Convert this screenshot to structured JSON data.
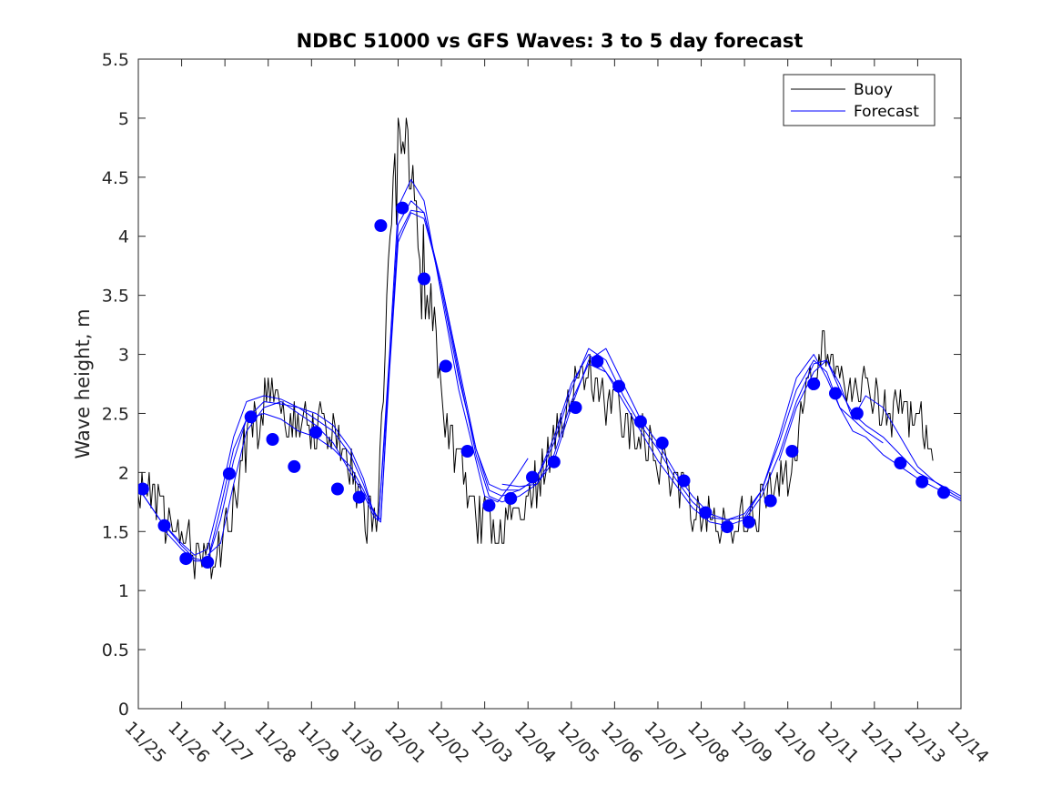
{
  "chart_data": {
    "type": "line",
    "title": "NDBC 51000 vs GFS Waves: 3 to 5 day forecast",
    "xlabel": "",
    "ylabel": "Wave height, m",
    "ylim": [
      0,
      5.5
    ],
    "xlim": [
      0,
      19
    ],
    "x_units": "days since 11/25",
    "yticks": [
      0,
      0.5,
      1,
      1.5,
      2,
      2.5,
      3,
      3.5,
      4,
      4.5,
      5,
      5.5
    ],
    "ytick_labels": [
      "0",
      "0.5",
      "1",
      "1.5",
      "2",
      "2.5",
      "3",
      "3.5",
      "4",
      "4.5",
      "5",
      "5.5"
    ],
    "xtick_labels": [
      "11/25",
      "11/26",
      "11/27",
      "11/28",
      "11/29",
      "11/30",
      "12/01",
      "12/02",
      "12/03",
      "12/04",
      "12/05",
      "12/06",
      "12/07",
      "12/08",
      "12/09",
      "12/10",
      "12/11",
      "12/12",
      "12/13",
      "12/14"
    ],
    "grid": false,
    "legend": {
      "position": "top-right",
      "entries": [
        {
          "label": "Buoy",
          "color": "#000000"
        },
        {
          "label": "Forecast",
          "color": "#0000ff"
        }
      ]
    },
    "series": [
      {
        "name": "Buoy",
        "color": "#000000",
        "x": [
          0,
          0.5,
          1,
          1.3,
          1.6,
          1.9,
          2.2,
          2.4,
          2.6,
          2.8,
          3.0,
          3.3,
          3.6,
          3.9,
          4.2,
          4.5,
          4.8,
          5.0,
          5.2,
          5.4,
          5.5,
          5.7,
          5.85,
          6.0,
          6.15,
          6.3,
          6.5,
          6.8,
          7.0,
          7.3,
          7.6,
          7.8,
          8.0,
          8.2,
          8.4,
          8.7,
          9.0,
          9.2,
          9.5,
          9.8,
          10.0,
          10.3,
          10.6,
          10.8,
          11.0,
          11.3,
          11.6,
          11.9,
          12.2,
          12.5,
          12.8,
          13.0,
          13.3,
          13.6,
          13.9,
          14.2,
          14.5,
          14.8,
          15.0,
          15.3,
          15.6,
          15.8,
          16.0,
          16.2,
          16.4,
          16.6,
          16.8,
          17.0,
          17.2,
          17.4,
          17.6,
          17.8,
          18.0,
          18.2,
          18.35
        ],
        "y": [
          1.9,
          1.65,
          1.45,
          1.3,
          1.25,
          1.3,
          1.7,
          2.1,
          2.3,
          2.5,
          2.6,
          2.55,
          2.5,
          2.4,
          2.45,
          2.35,
          2.1,
          1.9,
          1.7,
          1.55,
          1.6,
          3.0,
          4.1,
          4.55,
          4.8,
          4.4,
          3.8,
          3.3,
          2.7,
          2.2,
          1.9,
          1.6,
          1.65,
          1.55,
          1.5,
          1.6,
          1.85,
          1.9,
          2.15,
          2.45,
          2.7,
          2.85,
          2.7,
          2.55,
          2.5,
          2.4,
          2.3,
          2.2,
          2.0,
          1.85,
          1.7,
          1.6,
          1.55,
          1.55,
          1.6,
          1.65,
          1.75,
          1.85,
          2.0,
          2.4,
          2.85,
          3.1,
          3.05,
          2.9,
          2.75,
          2.8,
          2.7,
          2.6,
          2.55,
          2.5,
          2.55,
          2.45,
          2.45,
          2.3,
          2.1
        ]
      },
      {
        "name": "Forecast run 1",
        "color": "#0000ff",
        "x": [
          0,
          0.5,
          1.0,
          1.3,
          1.6,
          1.9,
          2.2,
          2.5,
          2.9,
          3.3,
          3.7,
          4.1,
          4.5,
          4.9,
          5.2,
          5.4,
          5.55,
          5.8,
          6.0,
          6.3,
          6.6,
          7.0,
          7.4,
          7.8,
          8.0,
          8.3,
          8.7,
          9.0
        ],
        "y": [
          1.87,
          1.6,
          1.4,
          1.3,
          1.35,
          1.8,
          2.3,
          2.6,
          2.65,
          2.62,
          2.55,
          2.45,
          2.35,
          2.15,
          1.9,
          1.7,
          1.6,
          3.0,
          4.25,
          4.48,
          4.3,
          3.5,
          2.7,
          2.1,
          1.8,
          1.75,
          1.95,
          2.12
        ]
      },
      {
        "name": "Forecast run 2",
        "color": "#0000ff",
        "x": [
          0,
          0.5,
          1.0,
          1.3,
          1.6,
          1.9,
          2.2,
          2.5,
          2.9,
          3.3,
          3.7,
          4.1,
          4.5,
          4.9,
          5.2,
          5.4,
          5.55,
          5.8,
          6.0,
          6.3,
          6.6,
          7.0,
          7.4,
          7.8,
          8.1,
          8.4,
          8.8,
          9.2,
          9.6,
          10.0,
          10.4,
          10.7,
          11.0
        ],
        "y": [
          1.87,
          1.6,
          1.38,
          1.27,
          1.25,
          1.6,
          2.1,
          2.45,
          2.6,
          2.58,
          2.55,
          2.5,
          2.4,
          2.2,
          1.95,
          1.7,
          1.6,
          2.9,
          4.1,
          4.3,
          4.2,
          3.55,
          2.8,
          2.2,
          1.9,
          1.85,
          1.85,
          1.95,
          2.3,
          2.75,
          3.0,
          2.9,
          2.75
        ]
      },
      {
        "name": "Forecast run 3",
        "color": "#0000ff",
        "x": [
          0.5,
          1.0,
          1.3,
          1.6,
          1.9,
          2.2,
          2.5,
          2.9,
          3.3,
          3.7,
          4.1,
          4.5,
          4.9,
          5.2,
          5.45,
          5.6,
          5.8,
          6.0,
          6.3,
          6.6,
          7.0,
          7.4,
          7.8,
          8.1,
          8.4,
          8.8,
          9.2,
          9.6,
          10.0,
          10.4,
          10.8,
          11.2,
          11.6,
          12.0,
          12.4,
          12.8,
          13.2,
          13.6,
          14.0,
          14.4,
          14.8,
          15.2,
          15.6,
          15.9,
          16.2,
          16.5,
          16.8,
          17.2,
          17.6,
          18.0,
          18.4,
          18.8,
          19.0
        ],
        "y": [
          1.55,
          1.35,
          1.25,
          1.25,
          1.7,
          2.2,
          2.45,
          2.5,
          2.45,
          2.35,
          2.3,
          2.2,
          2.05,
          1.85,
          1.65,
          1.6,
          2.9,
          4.0,
          4.22,
          4.2,
          3.6,
          2.85,
          2.15,
          1.8,
          1.75,
          1.8,
          1.9,
          2.15,
          2.6,
          2.92,
          2.85,
          2.6,
          2.35,
          2.1,
          1.9,
          1.7,
          1.58,
          1.55,
          1.6,
          1.8,
          2.15,
          2.6,
          2.92,
          2.95,
          2.7,
          2.5,
          2.4,
          2.3,
          2.15,
          2.0,
          1.92,
          1.82,
          1.78
        ]
      },
      {
        "name": "Forecast run 4",
        "color": "#0000ff",
        "x": [
          1.6,
          1.9,
          2.2,
          2.5,
          2.9,
          3.3,
          3.7,
          4.1,
          4.5,
          4.9,
          5.2,
          5.45,
          5.6,
          5.8,
          6.0,
          6.3,
          6.6,
          7.0,
          7.4,
          7.8,
          8.1,
          8.4,
          8.8,
          9.2,
          9.6,
          10.0,
          10.4,
          10.8,
          11.2,
          11.6,
          12.0,
          12.4,
          12.8,
          13.2,
          13.6,
          14.0,
          14.4,
          14.8,
          15.2,
          15.6,
          15.9,
          16.2,
          16.5,
          16.8,
          17.2,
          17.6,
          18.0,
          18.4,
          18.8,
          19.0
        ],
        "y": [
          1.3,
          1.4,
          1.9,
          2.35,
          2.55,
          2.6,
          2.5,
          2.4,
          2.25,
          2.0,
          1.82,
          1.62,
          1.58,
          2.85,
          3.95,
          4.2,
          4.15,
          3.6,
          2.9,
          2.2,
          1.85,
          1.8,
          1.85,
          1.95,
          2.25,
          2.7,
          3.05,
          2.95,
          2.65,
          2.4,
          2.2,
          1.95,
          1.75,
          1.62,
          1.6,
          1.65,
          1.85,
          2.25,
          2.7,
          2.95,
          2.85,
          2.55,
          2.35,
          2.3,
          2.15,
          2.05,
          1.95,
          1.87,
          1.8,
          1.76
        ]
      },
      {
        "name": "Forecast run 5",
        "color": "#0000ff",
        "x": [
          8.4,
          8.8,
          9.2,
          9.6,
          10.0,
          10.4,
          10.8,
          11.2,
          11.6,
          12.0,
          12.4,
          12.8,
          13.2,
          13.6,
          14.0,
          14.4,
          14.8,
          15.2,
          15.6,
          15.9,
          16.2,
          16.5,
          16.8,
          17.2,
          17.6,
          18.0,
          18.4,
          18.8,
          19.0
        ],
        "y": [
          1.9,
          1.88,
          1.9,
          2.1,
          2.55,
          2.95,
          3.05,
          2.75,
          2.45,
          2.25,
          2.0,
          1.8,
          1.65,
          1.6,
          1.62,
          1.85,
          2.3,
          2.8,
          3.0,
          2.8,
          2.55,
          2.45,
          2.65,
          2.55,
          2.3,
          2.05,
          1.92,
          1.84,
          1.8
        ]
      },
      {
        "name": "Forecast run 6",
        "color": "#0000ff",
        "x": [
          14.8,
          15.2,
          15.6,
          15.9,
          16.2,
          16.5,
          16.8,
          17.2
        ],
        "y": [
          2.1,
          2.55,
          2.85,
          2.95,
          2.75,
          2.45,
          2.35,
          2.25
        ]
      }
    ],
    "markers": {
      "name": "Forecast",
      "color": "#0000ff",
      "x": [
        0.1,
        0.6,
        1.1,
        1.6,
        2.1,
        2.6,
        3.1,
        3.6,
        4.1,
        4.6,
        5.1,
        5.6,
        6.1,
        6.6,
        7.1,
        7.6,
        8.1,
        8.6,
        9.1,
        9.6,
        10.1,
        10.6,
        11.1,
        11.6,
        12.1,
        12.6,
        13.1,
        13.6,
        14.1,
        14.6,
        15.1,
        15.6,
        16.1,
        16.6,
        17.6,
        18.1,
        18.6
      ],
      "y": [
        1.86,
        1.55,
        1.27,
        1.24,
        1.99,
        2.47,
        2.28,
        2.05,
        2.34,
        1.86,
        1.79,
        4.09,
        4.24,
        3.64,
        2.9,
        2.18,
        1.72,
        1.78,
        1.96,
        2.09,
        2.55,
        2.94,
        2.73,
        2.43,
        2.25,
        1.93,
        1.66,
        1.54,
        1.58,
        1.76,
        2.18,
        2.75,
        2.67,
        2.5,
        2.08,
        1.92,
        1.83
      ]
    }
  }
}
